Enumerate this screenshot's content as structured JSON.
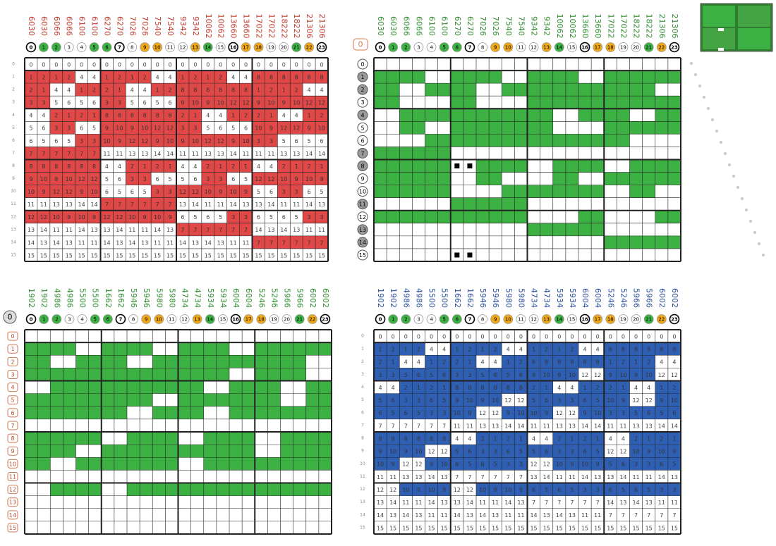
{
  "badges": [
    0,
    1,
    2,
    3,
    4,
    5,
    6,
    7,
    8,
    9,
    10,
    11,
    12,
    13,
    14,
    15,
    16,
    17,
    18,
    19,
    20,
    21,
    22,
    23
  ],
  "badge_colors": [
    "#fff",
    "#3cb043",
    "#3cb043",
    "#fff",
    "#fff",
    "#3cb043",
    "#3cb043",
    "#fff",
    "#fff",
    "#f0a818",
    "#f0a818",
    "#fff",
    "#fff",
    "#f0a818",
    "#3cb043",
    "#fff",
    "#fff",
    "#f0a818",
    "#f0a818",
    "#fff",
    "#fff",
    "#3cb043",
    "#f0a818",
    "#fff"
  ],
  "rows": [
    0,
    1,
    2,
    3,
    4,
    5,
    6,
    7,
    8,
    9,
    10,
    11,
    12,
    13,
    14,
    15
  ],
  "row_label_fills": [
    "#fff",
    "#999",
    "#999",
    "#fff",
    "#999",
    "#fff",
    "#fff",
    "#999",
    "#999",
    "#fff",
    "#fff",
    "#999",
    "#fff",
    "#999",
    "#999",
    "#fff"
  ],
  "tr_zero": "0",
  "bl_zero": "0",
  "panels": [
    {
      "header_color": "#c0392b",
      "fill_color": "#e04848",
      "headers": [
        6030,
        6030,
        6066,
        6066,
        6100,
        6100,
        6270,
        6270,
        7026,
        7026,
        7540,
        7540,
        9342,
        9342,
        10062,
        10062,
        13660,
        13660,
        17022,
        17022,
        18222,
        18222,
        21306,
        21306
      ],
      "fill": [
        "000000000000000000000000",
        "111100111100111100111111",
        "110011110011111111111100",
        "110000110000111111111111",
        "001111111111110011110011",
        "001100111111110000111111",
        "000011111111111111110000",
        "111111000000000000000000",
        "111111001111001111001111",
        "111111001100001100111111",
        "111111000011111111001100",
        "000000111111000000000000",
        "111111111111000011000011",
        "000000000000111111000000",
        "000000000000000000111111",
        "000000000000000000000000"
      ],
      "cells": [
        [
          0,
          0,
          0,
          0,
          0,
          0,
          0,
          0,
          0,
          0,
          0,
          0,
          0,
          0,
          0,
          0,
          0,
          0,
          0,
          0,
          0,
          0,
          0,
          0
        ],
        [
          1,
          2,
          1,
          2,
          4,
          4,
          1,
          2,
          1,
          2,
          4,
          4,
          1,
          2,
          1,
          2,
          4,
          4,
          8,
          8,
          8,
          8,
          8,
          8
        ],
        [
          2,
          1,
          4,
          4,
          1,
          2,
          2,
          1,
          4,
          4,
          1,
          2,
          8,
          8,
          8,
          8,
          8,
          8,
          1,
          2,
          1,
          2,
          4,
          4
        ],
        [
          3,
          3,
          5,
          6,
          5,
          6,
          3,
          3,
          5,
          6,
          5,
          6,
          9,
          10,
          9,
          10,
          12,
          12,
          9,
          10,
          9,
          10,
          12,
          12
        ],
        [
          4,
          4,
          2,
          1,
          2,
          1,
          8,
          8,
          8,
          8,
          8,
          8,
          2,
          1,
          4,
          4,
          1,
          2,
          2,
          1,
          4,
          4,
          1,
          2
        ],
        [
          5,
          6,
          3,
          3,
          6,
          5,
          9,
          10,
          9,
          10,
          12,
          12,
          3,
          3,
          5,
          6,
          5,
          6,
          10,
          9,
          12,
          12,
          9,
          10
        ],
        [
          6,
          5,
          6,
          5,
          3,
          3,
          10,
          9,
          12,
          12,
          9,
          10,
          9,
          10,
          12,
          12,
          9,
          10,
          3,
          3,
          5,
          6,
          5,
          6
        ],
        [
          7,
          7,
          7,
          7,
          7,
          7,
          11,
          11,
          13,
          13,
          14,
          14,
          11,
          11,
          13,
          13,
          14,
          11,
          11,
          11,
          13,
          13,
          14,
          14
        ],
        [
          8,
          8,
          8,
          8,
          8,
          8,
          4,
          4,
          2,
          1,
          2,
          1,
          4,
          4,
          2,
          1,
          2,
          1,
          4,
          4,
          2,
          1,
          2,
          1
        ],
        [
          9,
          10,
          9,
          10,
          12,
          12,
          5,
          6,
          3,
          3,
          6,
          5,
          5,
          6,
          3,
          3,
          6,
          5,
          12,
          12,
          10,
          9,
          10,
          9
        ],
        [
          10,
          9,
          12,
          12,
          9,
          10,
          6,
          5,
          6,
          5,
          3,
          3,
          12,
          12,
          10,
          9,
          10,
          9,
          5,
          6,
          3,
          3,
          6,
          5
        ],
        [
          11,
          11,
          13,
          13,
          14,
          14,
          7,
          7,
          7,
          7,
          7,
          7,
          13,
          14,
          11,
          11,
          14,
          13,
          13,
          14,
          11,
          11,
          14,
          13
        ],
        [
          12,
          12,
          10,
          9,
          10,
          9,
          12,
          12,
          10,
          9,
          10,
          9,
          6,
          5,
          6,
          5,
          3,
          3,
          6,
          5,
          6,
          5,
          3,
          3
        ],
        [
          13,
          14,
          11,
          11,
          14,
          13,
          13,
          14,
          11,
          11,
          14,
          13,
          7,
          7,
          7,
          7,
          7,
          7,
          14,
          13,
          14,
          13,
          11,
          11
        ],
        [
          14,
          13,
          14,
          13,
          11,
          11,
          14,
          13,
          14,
          13,
          11,
          11,
          14,
          13,
          14,
          13,
          11,
          11,
          7,
          7,
          7,
          7,
          7,
          7
        ],
        [
          15,
          15,
          15,
          15,
          15,
          15,
          15,
          15,
          15,
          15,
          15,
          15,
          15,
          15,
          15,
          15,
          15,
          15,
          15,
          15,
          15,
          15,
          15,
          15
        ]
      ]
    },
    {
      "header_color": "#2e8b2e",
      "fill_color": "#3cb043",
      "headers": [
        6030,
        6030,
        6066,
        6066,
        6100,
        6100,
        6270,
        6270,
        7026,
        7026,
        7540,
        7540,
        9342,
        9342,
        10062,
        10062,
        13660,
        13660,
        17022,
        17022,
        18222,
        18222,
        21306,
        21306
      ],
      "fill": [
        "000000000000000000000000",
        "111100111100111100111111",
        "110011110011111111111100",
        "110000110000111111111111",
        "001111111111110011110011",
        "001100111111110000111111",
        "000011111111111111110000",
        "111111000000000000000000",
        "111111001111001111001111",
        "111111001100001100111111",
        "111111000011111111001100",
        "000000111111000000000000",
        "111111111111000011000011",
        "000000000000111111000000",
        "000000000000000000111111",
        "000000000000000000000000"
      ]
    },
    {
      "header_color": "#2e8b2e",
      "fill_color": "#3cb043",
      "headers": [
        1902,
        1902,
        4986,
        4986,
        5500,
        5500,
        1662,
        1662,
        5946,
        5946,
        5980,
        5980,
        4734,
        4734,
        5934,
        5934,
        6004,
        6004,
        5246,
        5246,
        5966,
        5966,
        6002,
        6002
      ],
      "fill": [
        "000000000000000000000000",
        "111100111100111100111111",
        "110011110011111111111100",
        "111111111111111100111100",
        "001111111111110011110011",
        "111111111100111111110011",
        "111111110011110011111111",
        "000000000000000000000000",
        "111111001111001111001111",
        "111100111111111111001111",
        "110011111111001111111111",
        "000000000000000000000000",
        "001111001111111111111111",
        "000000000000000000000000",
        "000000000000000000000000",
        "000000000000000000000000"
      ]
    },
    {
      "header_color": "#2a4d9b",
      "fill_color": "#2f5fb3",
      "headers": [
        1902,
        1902,
        4986,
        4986,
        5500,
        5500,
        1662,
        1662,
        5946,
        5946,
        5980,
        5980,
        4734,
        4734,
        5934,
        5934,
        6004,
        6004,
        5246,
        5246,
        5966,
        5966,
        6002,
        6002
      ],
      "fill": [
        "000000000000000000000000",
        "111100111100111100111111",
        "110011110011111111111100",
        "111111111111111100111100",
        "001111111111110011110011",
        "111111111100111111110011",
        "111111110011110011111111",
        "000000000000000000000000",
        "111111001111001111001111",
        "111100111111111111001111",
        "110011111111001111111111",
        "000000000000000000000000",
        "001111001111111111111111",
        "000000000000000000000000",
        "000000000000000000000000",
        "000000000000000000000000"
      ],
      "cells": [
        [
          0,
          0,
          0,
          0,
          0,
          0,
          0,
          0,
          0,
          0,
          0,
          0,
          0,
          0,
          0,
          0,
          0,
          0,
          0,
          0,
          0,
          0,
          0,
          0
        ],
        [
          1,
          2,
          1,
          2,
          4,
          4,
          1,
          2,
          1,
          2,
          4,
          4,
          1,
          2,
          1,
          2,
          4,
          4,
          8,
          8,
          8,
          8,
          8,
          8
        ],
        [
          2,
          1,
          4,
          4,
          1,
          2,
          2,
          1,
          4,
          4,
          1,
          2,
          8,
          8,
          8,
          8,
          8,
          8,
          1,
          2,
          1,
          2,
          4,
          4
        ],
        [
          3,
          3,
          5,
          6,
          5,
          6,
          3,
          3,
          5,
          6,
          5,
          6,
          9,
          10,
          9,
          10,
          12,
          12,
          9,
          10,
          9,
          10,
          12,
          12
        ],
        [
          4,
          4,
          2,
          1,
          2,
          1,
          8,
          8,
          8,
          8,
          8,
          8,
          2,
          1,
          4,
          4,
          1,
          2,
          2,
          1,
          4,
          4,
          1,
          2
        ],
        [
          5,
          6,
          3,
          3,
          6,
          5,
          9,
          10,
          9,
          10,
          12,
          12,
          5,
          6,
          3,
          3,
          6,
          5,
          10,
          9,
          12,
          12,
          9,
          10
        ],
        [
          6,
          5,
          6,
          5,
          3,
          3,
          10,
          9,
          12,
          12,
          9,
          10,
          10,
          9,
          12,
          12,
          9,
          10,
          3,
          3,
          5,
          6,
          5,
          6
        ],
        [
          7,
          7,
          7,
          7,
          7,
          7,
          11,
          11,
          13,
          13,
          14,
          14,
          11,
          11,
          13,
          13,
          14,
          14,
          11,
          11,
          13,
          13,
          14,
          14
        ],
        [
          8,
          8,
          8,
          8,
          8,
          8,
          4,
          4,
          2,
          1,
          2,
          1,
          4,
          4,
          2,
          1,
          2,
          1,
          4,
          4,
          2,
          1,
          2,
          1
        ],
        [
          9,
          10,
          9,
          10,
          12,
          12,
          5,
          6,
          3,
          3,
          6,
          5,
          5,
          6,
          3,
          3,
          6,
          5,
          12,
          12,
          10,
          9,
          10,
          9
        ],
        [
          10,
          9,
          12,
          12,
          9,
          10,
          6,
          5,
          6,
          5,
          3,
          3,
          12,
          12,
          10,
          9,
          10,
          9,
          5,
          6,
          3,
          3,
          6,
          5
        ],
        [
          11,
          11,
          13,
          13,
          14,
          13,
          7,
          7,
          7,
          7,
          7,
          7,
          13,
          14,
          11,
          11,
          14,
          13,
          13,
          14,
          11,
          11,
          14,
          13
        ],
        [
          12,
          12,
          10,
          9,
          10,
          9,
          12,
          12,
          10,
          9,
          10,
          9,
          6,
          5,
          6,
          5,
          3,
          3,
          6,
          5,
          6,
          5,
          3,
          3
        ],
        [
          13,
          14,
          11,
          11,
          14,
          13,
          13,
          14,
          11,
          11,
          14,
          13,
          7,
          7,
          7,
          7,
          7,
          7,
          14,
          13,
          14,
          13,
          11,
          11
        ],
        [
          14,
          13,
          14,
          13,
          11,
          11,
          14,
          13,
          14,
          13,
          11,
          11,
          14,
          13,
          14,
          13,
          11,
          11,
          7,
          7,
          7,
          7,
          7,
          7
        ],
        [
          15,
          15,
          15,
          15,
          15,
          15,
          15,
          15,
          15,
          15,
          15,
          15,
          15,
          15,
          15,
          15,
          15,
          15,
          15,
          15,
          15,
          15,
          15,
          15
        ]
      ]
    }
  ]
}
